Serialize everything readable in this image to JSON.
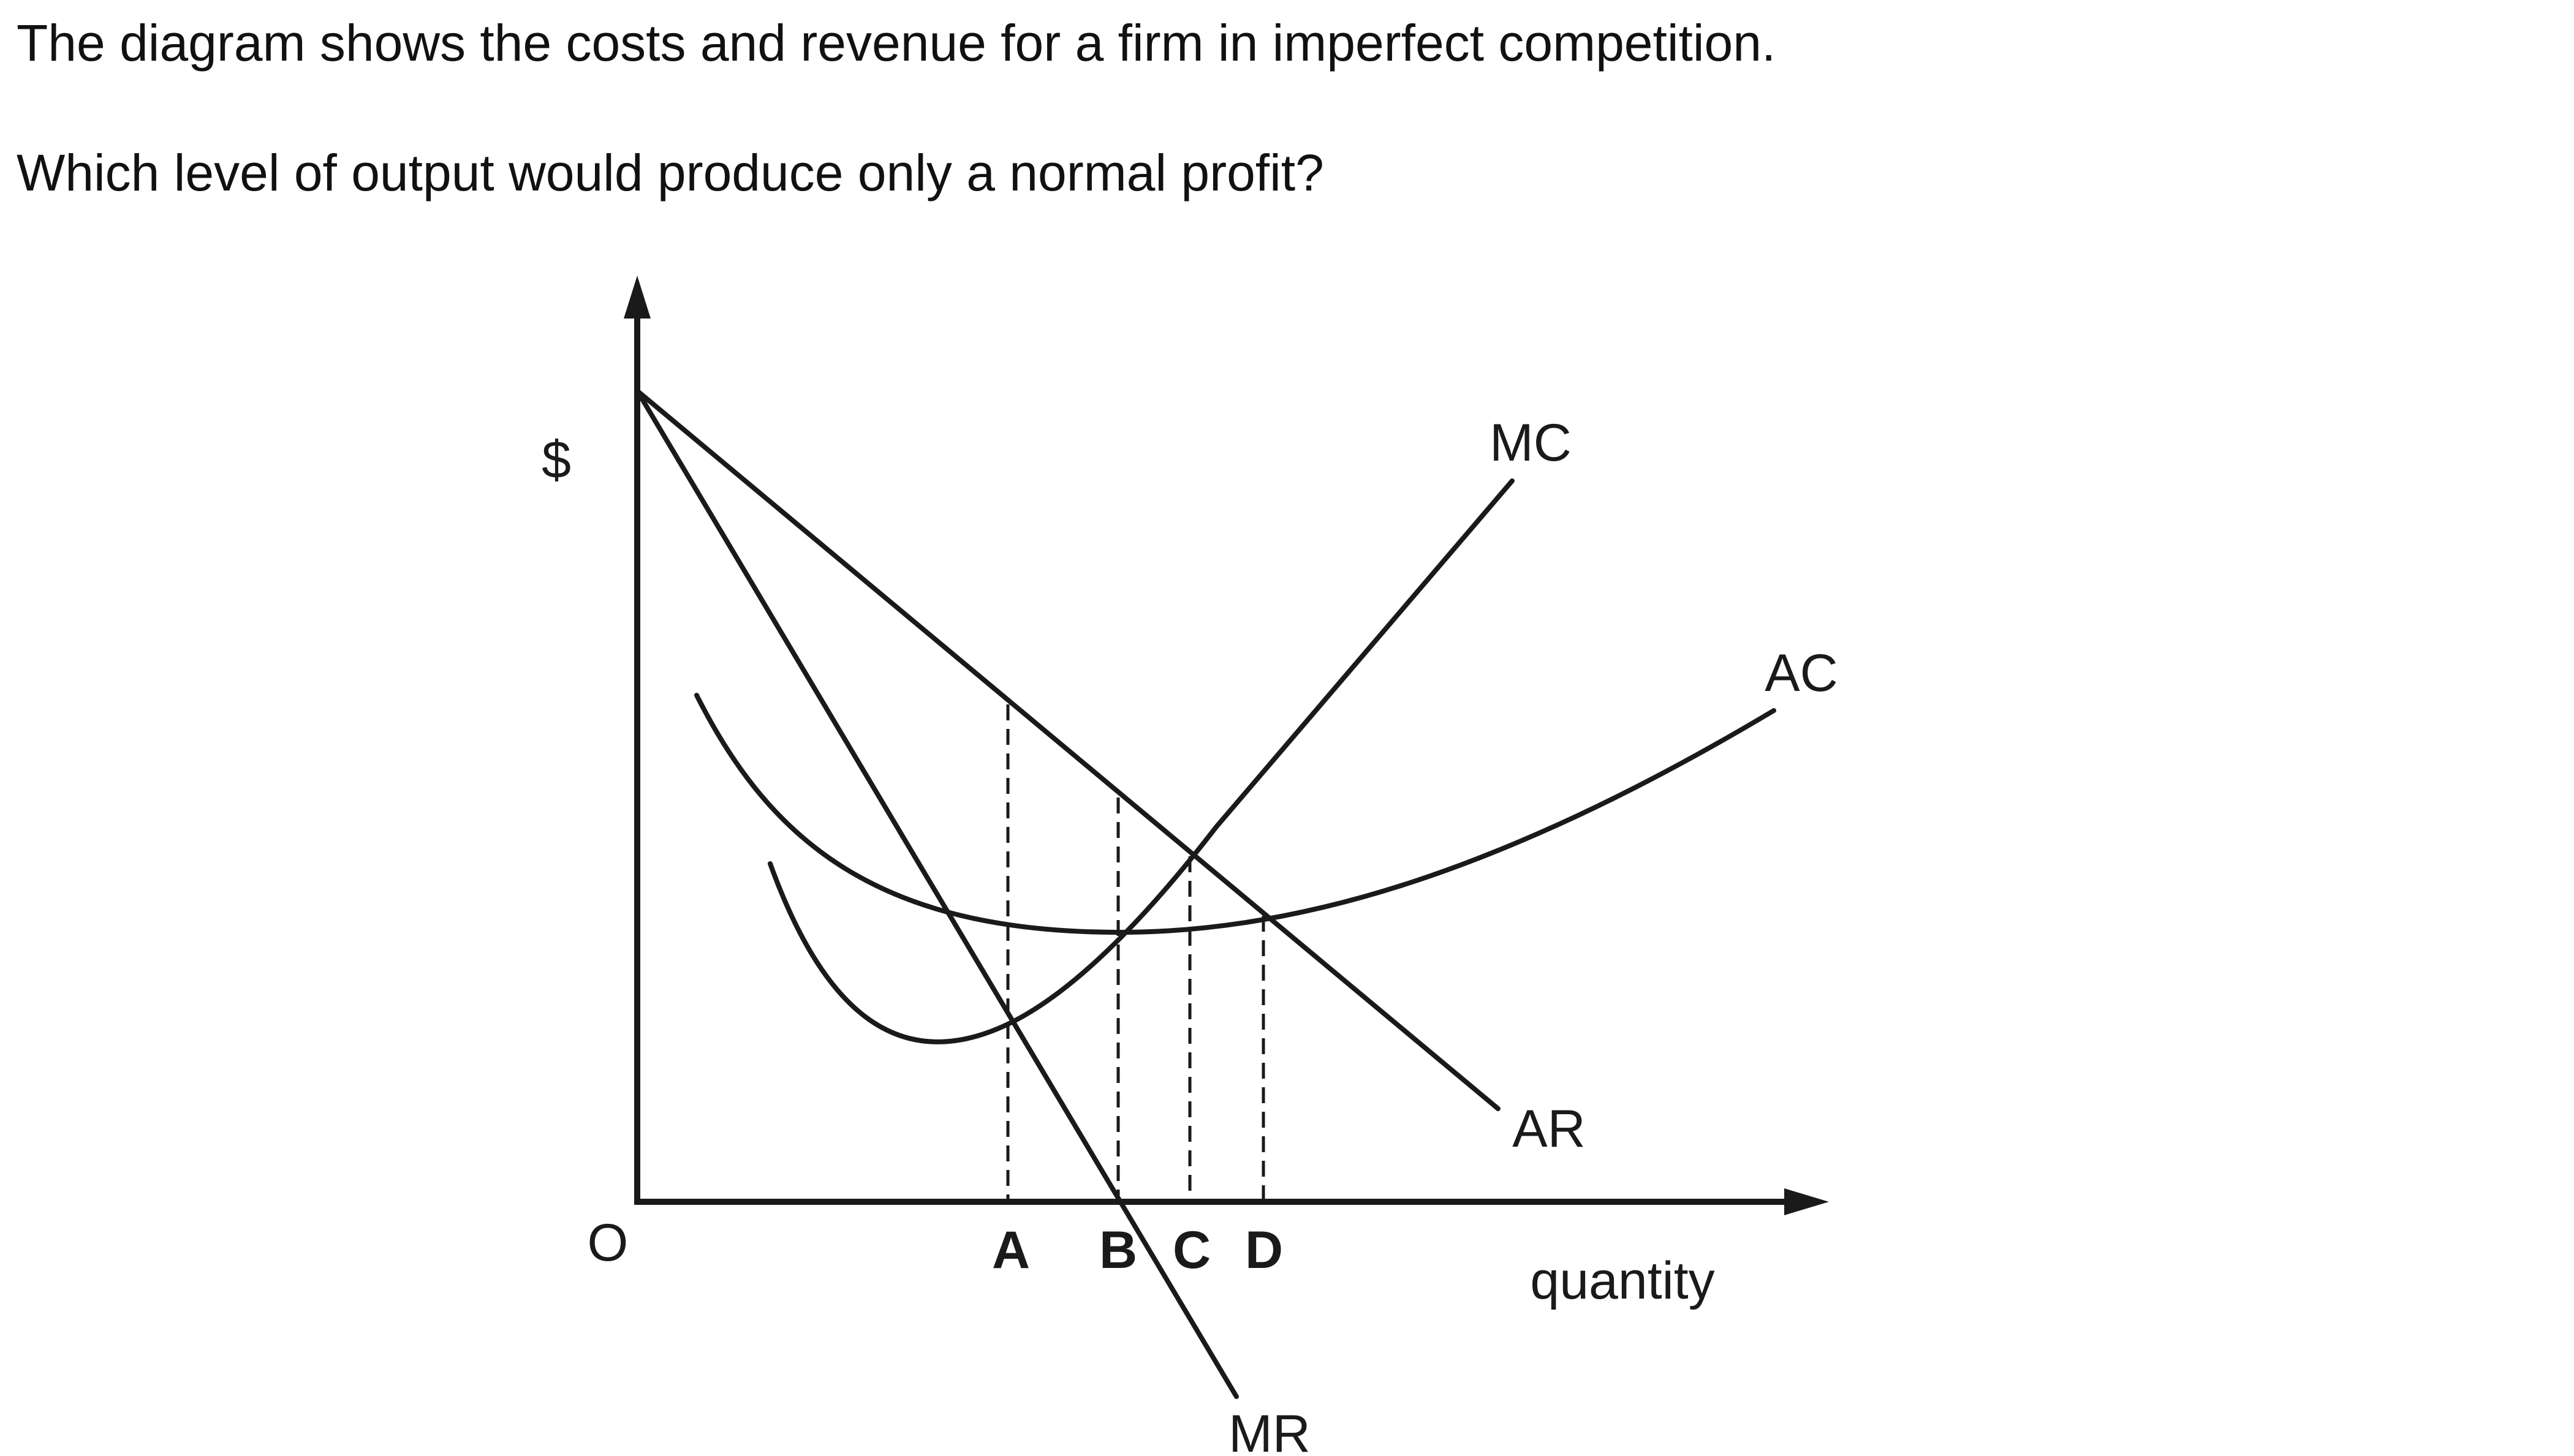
{
  "question": {
    "line1": "The diagram shows the costs and revenue for a firm in imperfect competition.",
    "line2": "Which level of output would produce only a normal profit?"
  },
  "diagram": {
    "y_axis_label": "$",
    "origin_label": "O",
    "x_axis_label": "quantity",
    "curves": {
      "mc": "MC",
      "ac": "AC",
      "ar": "AR",
      "mr": "MR"
    },
    "output_levels": [
      "A",
      "B",
      "C",
      "D"
    ]
  }
}
